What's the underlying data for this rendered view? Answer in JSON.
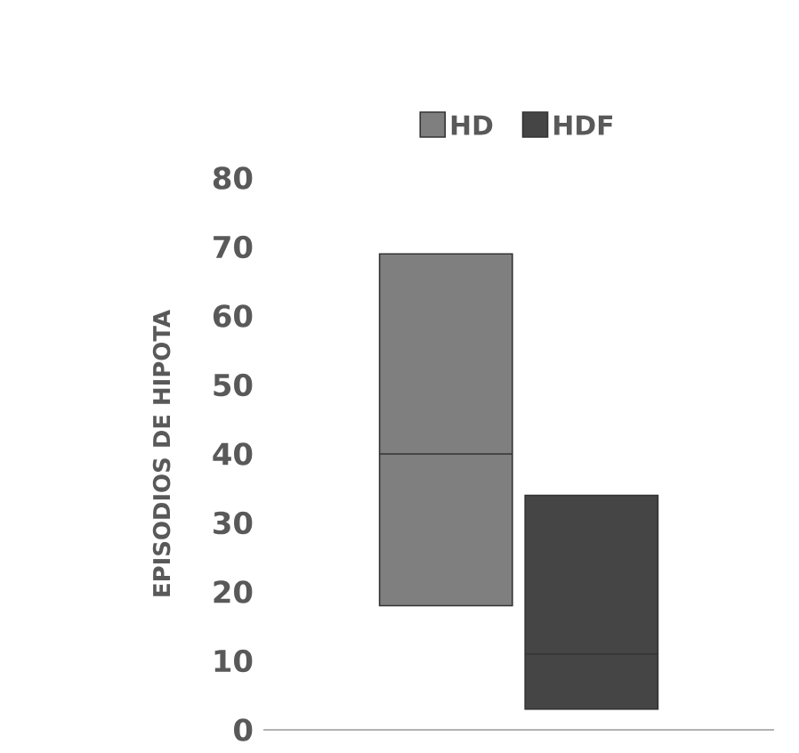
{
  "chart_data": {
    "type": "box",
    "ylabel": "EPISODIOS DE HIPOTA",
    "categories": [
      null
    ],
    "series": [
      {
        "name": "HD",
        "color": "#7f7f7f",
        "boxes": [
          {
            "low": 18,
            "q1": 18,
            "median": 40,
            "q3": 69,
            "high": 69
          }
        ]
      },
      {
        "name": "HDF",
        "color": "#454545",
        "boxes": [
          {
            "low": 3,
            "q1": 3,
            "median": 11,
            "q3": 34,
            "high": 34
          }
        ]
      }
    ],
    "ylim": [
      0,
      80
    ],
    "yticks": [
      0,
      10,
      20,
      30,
      40,
      50,
      60,
      70,
      80
    ],
    "tick_labels": "y",
    "legend": "top",
    "grid": false
  }
}
